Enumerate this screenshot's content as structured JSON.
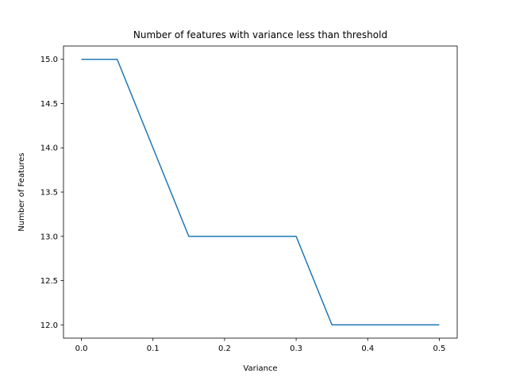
{
  "chart_data": {
    "type": "line",
    "title": "Number of features with variance less than threshold",
    "xlabel": "Variance",
    "ylabel": "Number of Features",
    "xlim": [
      -0.025,
      0.525
    ],
    "ylim": [
      11.85,
      15.15
    ],
    "xticks": [
      0.0,
      0.1,
      0.2,
      0.3,
      0.4,
      0.5
    ],
    "xtick_labels": [
      "0.0",
      "0.1",
      "0.2",
      "0.3",
      "0.4",
      "0.5"
    ],
    "yticks": [
      12.0,
      12.5,
      13.0,
      13.5,
      14.0,
      14.5,
      15.0
    ],
    "ytick_labels": [
      "12.0",
      "12.5",
      "13.0",
      "13.5",
      "14.0",
      "14.5",
      "15.0"
    ],
    "grid": false,
    "series": [
      {
        "color": "#1f77b4",
        "x": [
          0.0,
          0.05,
          0.1,
          0.15,
          0.2,
          0.25,
          0.3,
          0.35,
          0.4,
          0.45,
          0.5
        ],
        "y": [
          15,
          15,
          14,
          13,
          13,
          13,
          13,
          12,
          12,
          12,
          12
        ]
      }
    ]
  }
}
